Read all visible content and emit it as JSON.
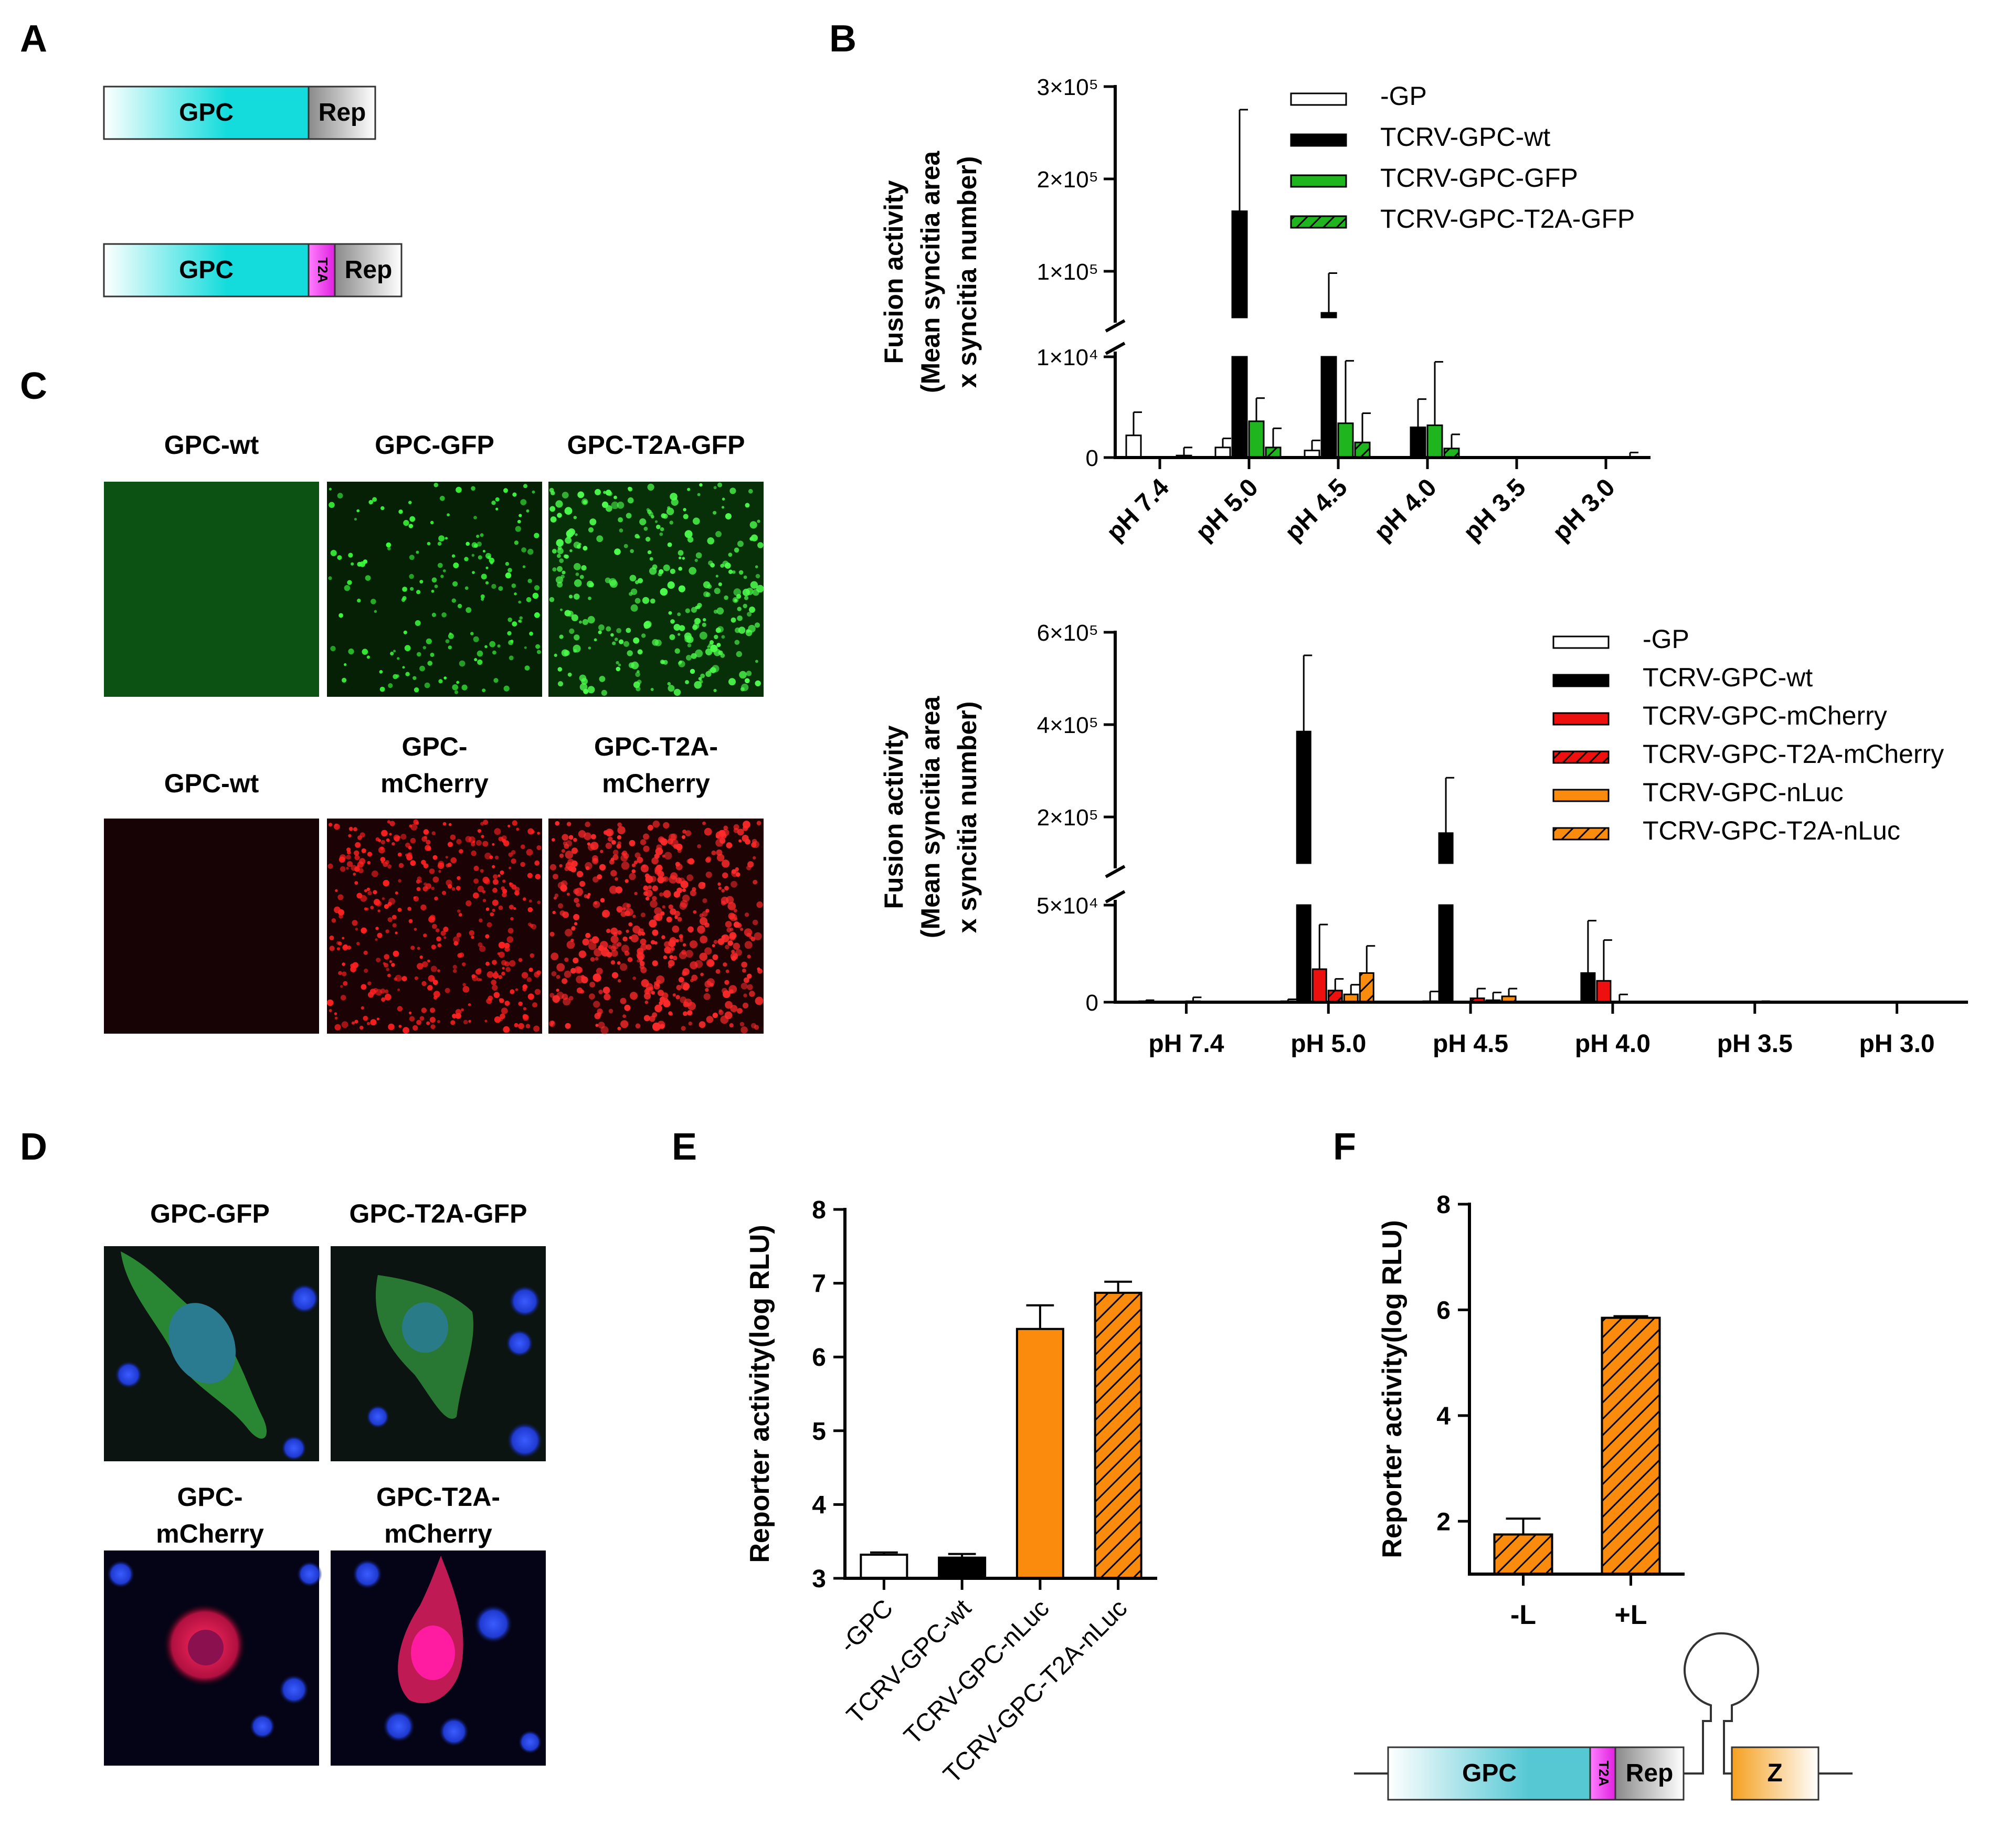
{
  "panel_labels": {
    "A": "A",
    "B": "B",
    "C": "C",
    "D": "D",
    "E": "E",
    "F": "F"
  },
  "colors": {
    "gfp_green": "#1fb51f",
    "mcherry_red": "#ee0f0f",
    "nluc_orange": "#fb8b0d",
    "gpc_cyan": "#14dcdc",
    "t2a_magenta": "#f04ff0",
    "rep_gray": "#9a9a9a",
    "z_orange": "#f5a623"
  },
  "panel_A": {
    "construct1": {
      "gpc": "GPC",
      "rep": "Rep"
    },
    "construct2": {
      "gpc": "GPC",
      "t2a": "T2A",
      "rep": "Rep"
    }
  },
  "panel_C": {
    "row1_labels": [
      "GPC-wt",
      "GPC-GFP",
      "GPC-T2A-GFP"
    ],
    "row2_labels": [
      [
        "GPC-wt"
      ],
      [
        "GPC-",
        "mCherry"
      ],
      [
        "GPC-T2A-",
        "mCherry"
      ]
    ]
  },
  "panel_D": {
    "row1_labels": [
      "GPC-GFP",
      "GPC-T2A-GFP"
    ],
    "row2_labels": [
      [
        "GPC-",
        "mCherry"
      ],
      [
        "GPC-T2A-",
        "mCherry"
      ]
    ]
  },
  "panel_F_diagram": {
    "gpc": "GPC",
    "t2a": "T2A",
    "rep": "Rep",
    "z": "Z"
  },
  "chart_data": [
    {
      "id": "B_top",
      "type": "bar",
      "ylabel": [
        "Fusion activity",
        "(Mean syncitia area",
        "x syncitia number)"
      ],
      "categories": [
        "pH 7.4",
        "pH 5.0",
        "pH 4.5",
        "pH 4.0",
        "pH 3.5",
        "pH 3.0"
      ],
      "yticks": [
        {
          "v": 0,
          "text": "0"
        },
        {
          "v": 10000,
          "text": "1×10⁴"
        },
        {
          "v": 100000,
          "text": "1×10⁵"
        },
        {
          "v": 200000,
          "text": "2×10⁵"
        },
        {
          "v": 300000,
          "text": "3×10⁵"
        }
      ],
      "axis_break": [
        10000,
        50000
      ],
      "series": [
        {
          "name": "-GP",
          "values": [
            2200,
            1000,
            700,
            0,
            0,
            0
          ],
          "err": [
            2300,
            900,
            1000,
            0,
            0,
            0
          ],
          "color": "#ffffff",
          "hatch": false
        },
        {
          "name": "TCRV-GPC-wt",
          "values": [
            0,
            165000,
            55000,
            3000,
            0,
            0
          ],
          "err": [
            0,
            110000,
            43000,
            2800,
            0,
            0
          ],
          "color": "#000000",
          "hatch": false
        },
        {
          "name": "TCRV-GPC-GFP",
          "values": [
            0,
            3600,
            3400,
            3200,
            0,
            0
          ],
          "err": [
            0,
            2300,
            6200,
            6300,
            0,
            0
          ],
          "color": "#1fb51f",
          "hatch": false
        },
        {
          "name": "TCRV-GPC-T2A-GFP",
          "values": [
            200,
            1000,
            1500,
            900,
            0,
            0
          ],
          "err": [
            800,
            1900,
            2900,
            1400,
            0,
            500
          ],
          "color": "#1fb51f",
          "hatch": true
        }
      ]
    },
    {
      "id": "B_bottom",
      "type": "bar",
      "ylabel": [
        "Fusion activity",
        "(Mean syncitia area",
        "x syncitia number)"
      ],
      "categories": [
        "pH 7.4",
        "pH 5.0",
        "pH 4.5",
        "pH 4.0",
        "pH 3.5",
        "pH 3.0"
      ],
      "yticks": [
        {
          "v": 0,
          "text": "0"
        },
        {
          "v": 50000,
          "text": "5×10⁴"
        },
        {
          "v": 200000,
          "text": "2×10⁵"
        },
        {
          "v": 400000,
          "text": "4×10⁵"
        },
        {
          "v": 600000,
          "text": "6×10⁵"
        }
      ],
      "axis_break": [
        50000,
        100000
      ],
      "series": [
        {
          "name": "-GP",
          "values": [
            500,
            500,
            500,
            0,
            0,
            0
          ],
          "err": [
            500,
            1000,
            5000,
            0,
            0,
            0
          ],
          "color": "#ffffff",
          "hatch": false
        },
        {
          "name": "TCRV-GPC-wt",
          "values": [
            0,
            385000,
            165000,
            15000,
            0,
            0
          ],
          "err": [
            0,
            165000,
            120000,
            27000,
            0,
            0
          ],
          "color": "#000000",
          "hatch": false
        },
        {
          "name": "TCRV-GPC-mCherry",
          "values": [
            0,
            17000,
            0,
            11000,
            0,
            0
          ],
          "err": [
            0,
            23000,
            0,
            21000,
            0,
            0
          ],
          "color": "#ee0f0f",
          "hatch": false
        },
        {
          "name": "TCRV-GPC-T2A-mCherry",
          "values": [
            500,
            6000,
            2000,
            0,
            0,
            0
          ],
          "err": [
            2000,
            6000,
            5000,
            4000,
            500,
            0
          ],
          "color": "#ee0f0f",
          "hatch": true
        },
        {
          "name": "TCRV-GPC-nLuc",
          "values": [
            0,
            4000,
            1000,
            0,
            0,
            0
          ],
          "err": [
            0,
            5000,
            4000,
            0,
            0,
            0
          ],
          "color": "#fb8b0d",
          "hatch": false
        },
        {
          "name": "TCRV-GPC-T2A-nLuc",
          "values": [
            0,
            15000,
            3000,
            0,
            0,
            0
          ],
          "err": [
            0,
            14000,
            4000,
            0,
            0,
            0
          ],
          "color": "#fb8b0d",
          "hatch": true
        }
      ]
    },
    {
      "id": "E",
      "type": "bar",
      "ylabel": "Reporter activity(log RLU)",
      "ylim": [
        3,
        8
      ],
      "yticks": [
        3,
        4,
        5,
        6,
        7,
        8
      ],
      "categories": [
        "-GPC",
        "TCRV-GPC-wt",
        "TCRV-GPC-nLuc",
        "TCRV-GPC-T2A-nLuc"
      ],
      "values": [
        3.32,
        3.28,
        6.38,
        6.87
      ],
      "err": [
        0.03,
        0.05,
        0.32,
        0.15
      ],
      "colors": [
        "#ffffff",
        "#000000",
        "#fb8b0d",
        "#fb8b0d"
      ],
      "hatch": [
        false,
        false,
        false,
        true
      ]
    },
    {
      "id": "F",
      "type": "bar",
      "ylabel": "Reporter activity(log RLU)",
      "ylim": [
        1,
        8
      ],
      "yticks": [
        2,
        4,
        6,
        8
      ],
      "categories": [
        "-L",
        "+L"
      ],
      "values": [
        1.75,
        5.85
      ],
      "err": [
        0.3,
        0.03
      ],
      "colors": [
        "#fb8b0d",
        "#fb8b0d"
      ],
      "hatch": [
        true,
        true
      ]
    }
  ]
}
